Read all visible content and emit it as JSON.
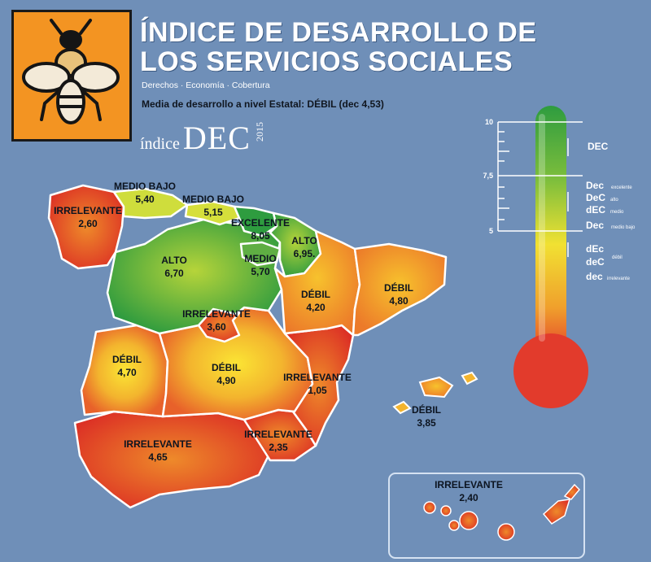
{
  "header": {
    "title_line1": "ÍNDICE DE DESARROLLO DE",
    "title_line2": "LOS SERVICIOS SOCIALES",
    "subtitle": "Derechos · Economía · Cobertura",
    "average_text": "Media de desarrollo a nivel Estatal: DÉBIL (dec 4,53)",
    "brand_prefix": "índice",
    "brand_name": "DEC",
    "brand_year": "2015"
  },
  "logo": {
    "icon": "bee-icon"
  },
  "colors": {
    "background": "#6f8fb8",
    "logo": "#f39422",
    "excelente": "#2e9c3f",
    "alto": "#3aa64a",
    "medio": "#93c23d",
    "medio_bajo": "#cfdd3c",
    "debil": "#f0a02c",
    "irrelevante": "#e23b2c"
  },
  "regions": [
    {
      "name": "Galicia",
      "rating": "IRRELEVANTE",
      "value": "2,60"
    },
    {
      "name": "Asturias",
      "rating": "MEDIO BAJO",
      "value": "5,40"
    },
    {
      "name": "Cantabria",
      "rating": "MEDIO BAJO",
      "value": "5,15"
    },
    {
      "name": "País Vasco",
      "rating": "EXCELENTE",
      "value": "8,05"
    },
    {
      "name": "Navarra",
      "rating": "ALTO",
      "value": "6,95."
    },
    {
      "name": "Castilla y León",
      "rating": "ALTO",
      "value": "6,70"
    },
    {
      "name": "La Rioja",
      "rating": "MEDIO",
      "value": "5,70"
    },
    {
      "name": "Aragón",
      "rating": "DÉBIL",
      "value": "4,20"
    },
    {
      "name": "Cataluña",
      "rating": "DÉBIL",
      "value": "4,80"
    },
    {
      "name": "Madrid",
      "rating": "IRRELEVANTE",
      "value": "3,60"
    },
    {
      "name": "Extremadura",
      "rating": "DÉBIL",
      "value": "4,70"
    },
    {
      "name": "Castilla-La Mancha",
      "rating": "DÉBIL",
      "value": "4,90"
    },
    {
      "name": "Comunidad Valenciana",
      "rating": "IRRELEVANTE",
      "value": "1,05"
    },
    {
      "name": "Islas Baleares",
      "rating": "DÉBIL",
      "value": "3,85"
    },
    {
      "name": "Andalucía",
      "rating": "IRRELEVANTE",
      "value": "4,65"
    },
    {
      "name": "Murcia",
      "rating": "IRRELEVANTE",
      "value": "2,35"
    },
    {
      "name": "Canarias",
      "rating": "IRRELEVANTE",
      "value": "2,40"
    }
  ],
  "thermometer": {
    "scale_labels": [
      "10",
      "7,5",
      "5"
    ],
    "legend": [
      {
        "label": "DEC"
      },
      {
        "label": "Dec",
        "note": "excelente"
      },
      {
        "label": "DeC",
        "note": "alto"
      },
      {
        "label": "dEC",
        "note": "medio"
      },
      {
        "label": "Dec",
        "note": "medio bajo"
      },
      {
        "label": "dEc",
        "note": "débil"
      },
      {
        "label": "deC",
        "note": ""
      },
      {
        "label": "dec",
        "note": "irrelevante"
      }
    ]
  }
}
